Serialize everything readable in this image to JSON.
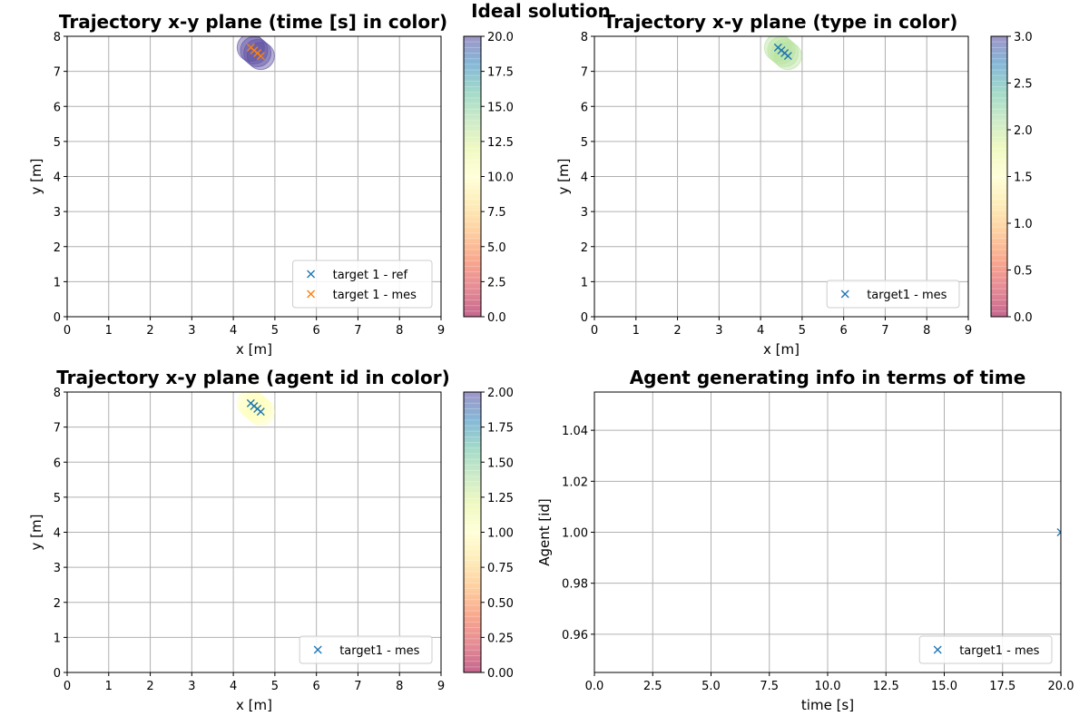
{
  "figure_title": "Ideal solution",
  "chart_data": [
    {
      "type": "scatter",
      "title": "Trajectory x-y plane  (time [s] in color)",
      "xlabel": "x [m]",
      "ylabel": "y [m]",
      "xlim": [
        0,
        9
      ],
      "ylim": [
        0,
        8
      ],
      "xticks": [
        "0",
        "1",
        "2",
        "3",
        "4",
        "5",
        "6",
        "7",
        "8",
        "9"
      ],
      "yticks": [
        "0",
        "1",
        "2",
        "3",
        "4",
        "5",
        "6",
        "7",
        "8"
      ],
      "grid": true,
      "legend_position": "lower-right",
      "series": [
        {
          "name": "target 1 - ref",
          "marker": "x",
          "color": "#1f77b4",
          "x": [
            4.42,
            4.5,
            4.58,
            4.66
          ],
          "y": [
            7.68,
            7.6,
            7.52,
            7.44
          ]
        },
        {
          "name": "target 1 - mes",
          "marker": "x",
          "color": "#ff7f0e",
          "x": [
            4.42,
            4.5,
            4.58,
            4.66
          ],
          "y": [
            7.68,
            7.6,
            7.52,
            7.44
          ]
        }
      ],
      "bubbles": {
        "color": "#5e4fa2",
        "x": [
          4.42,
          4.5,
          4.58,
          4.66
        ],
        "y": [
          7.68,
          7.6,
          7.52,
          7.44
        ]
      },
      "colorbar": {
        "min": 0,
        "max": 20,
        "ticks": [
          "0.0",
          "2.5",
          "5.0",
          "7.5",
          "10.0",
          "12.5",
          "15.0",
          "17.5",
          "20.0"
        ]
      }
    },
    {
      "type": "scatter",
      "title": "Trajectory x-y plane (type in color)",
      "xlabel": "x [m]",
      "ylabel": "y [m]",
      "xlim": [
        0,
        9
      ],
      "ylim": [
        0,
        8
      ],
      "xticks": [
        "0",
        "1",
        "2",
        "3",
        "4",
        "5",
        "6",
        "7",
        "8",
        "9"
      ],
      "yticks": [
        "0",
        "1",
        "2",
        "3",
        "4",
        "5",
        "6",
        "7",
        "8"
      ],
      "grid": true,
      "legend_position": "lower-right",
      "series": [
        {
          "name": "target1 - mes",
          "marker": "x",
          "color": "#1f77b4",
          "x": [
            4.42,
            4.5,
            4.58,
            4.66
          ],
          "y": [
            7.68,
            7.6,
            7.52,
            7.44
          ]
        }
      ],
      "bubbles": {
        "color": "#b9e3a0",
        "x": [
          4.42,
          4.5,
          4.58,
          4.66
        ],
        "y": [
          7.68,
          7.6,
          7.52,
          7.44
        ]
      },
      "colorbar": {
        "min": 0,
        "max": 3,
        "ticks": [
          "0.0",
          "0.5",
          "1.0",
          "1.5",
          "2.0",
          "2.5",
          "3.0"
        ]
      }
    },
    {
      "type": "scatter",
      "title": "Trajectory x-y plane (agent id in color)",
      "xlabel": "x [m]",
      "ylabel": "y [m]",
      "xlim": [
        0,
        9
      ],
      "ylim": [
        0,
        8
      ],
      "xticks": [
        "0",
        "1",
        "2",
        "3",
        "4",
        "5",
        "6",
        "7",
        "8",
        "9"
      ],
      "yticks": [
        "0",
        "1",
        "2",
        "3",
        "4",
        "5",
        "6",
        "7",
        "8"
      ],
      "grid": true,
      "legend_position": "lower-right",
      "series": [
        {
          "name": "target1 - mes",
          "marker": "x",
          "color": "#1f77b4",
          "x": [
            4.42,
            4.5,
            4.58,
            4.66
          ],
          "y": [
            7.68,
            7.6,
            7.52,
            7.44
          ]
        }
      ],
      "bubbles": {
        "color": "#ffffbf",
        "x": [
          4.42,
          4.5,
          4.58,
          4.66
        ],
        "y": [
          7.68,
          7.6,
          7.52,
          7.44
        ]
      },
      "colorbar": {
        "min": 0,
        "max": 2,
        "ticks": [
          "0.00",
          "0.25",
          "0.50",
          "0.75",
          "1.00",
          "1.25",
          "1.50",
          "1.75",
          "2.00"
        ]
      }
    },
    {
      "type": "scatter",
      "title": "Agent generating info in terms of time",
      "xlabel": "time [s]",
      "ylabel": "Agent [id]",
      "xlim": [
        0,
        20
      ],
      "ylim": [
        0.945,
        1.055
      ],
      "xticks": [
        "0.0",
        "2.5",
        "5.0",
        "7.5",
        "10.0",
        "12.5",
        "15.0",
        "17.5",
        "20.0"
      ],
      "yticks": [
        "0.96",
        "0.98",
        "1.00",
        "1.02",
        "1.04"
      ],
      "grid": true,
      "legend_position": "lower-right",
      "series": [
        {
          "name": "target1 - mes",
          "marker": "x",
          "color": "#1f77b4",
          "x": [
            20.0
          ],
          "y": [
            1.0
          ]
        }
      ]
    }
  ]
}
